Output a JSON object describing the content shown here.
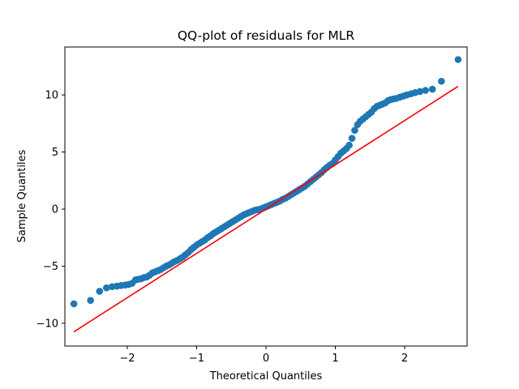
{
  "chart_data": {
    "type": "scatter",
    "title": "QQ-plot of residuals for MLR",
    "xlabel": "Theoretical Quantiles",
    "ylabel": "Sample Quantiles",
    "xlim": [
      -2.9,
      2.9
    ],
    "ylim": [
      -12.0,
      14.2
    ],
    "xticks": [
      -2,
      -1,
      0,
      1,
      2
    ],
    "yticks": [
      -10,
      -5,
      0,
      5,
      10
    ],
    "grid": false,
    "legend": "none",
    "colors": {
      "points": "#1f77b4",
      "reference_line": "#ff0000"
    },
    "series": [
      {
        "kind": "points",
        "x": [
          -2.77,
          -2.53,
          -2.4,
          -2.3,
          -2.22,
          -2.15,
          -2.09,
          -2.03,
          -1.98,
          -1.93,
          -1.88,
          -1.84,
          -1.8,
          -1.76,
          -1.72,
          -1.68,
          -1.64,
          -1.6,
          -1.56,
          -1.52,
          -1.48,
          -1.44,
          -1.4,
          -1.36,
          -1.32,
          -1.28,
          -1.24,
          -1.2,
          -1.16,
          -1.12,
          -1.08,
          -1.04,
          -1.0,
          -0.96,
          -0.92,
          -0.88,
          -0.84,
          -0.8,
          -0.76,
          -0.72,
          -0.68,
          -0.64,
          -0.6,
          -0.56,
          -0.52,
          -0.48,
          -0.44,
          -0.4,
          -0.36,
          -0.32,
          -0.28,
          -0.24,
          -0.2,
          -0.16,
          -0.12,
          -0.08,
          -0.04,
          0.0,
          0.04,
          0.08,
          0.12,
          0.16,
          0.2,
          0.24,
          0.28,
          0.32,
          0.36,
          0.4,
          0.44,
          0.48,
          0.52,
          0.56,
          0.6,
          0.64,
          0.68,
          0.72,
          0.76,
          0.8,
          0.84,
          0.88,
          0.92,
          0.96,
          1.0,
          1.04,
          1.08,
          1.12,
          1.16,
          1.2,
          1.24,
          1.28,
          1.32,
          1.36,
          1.4,
          1.44,
          1.48,
          1.52,
          1.56,
          1.6,
          1.64,
          1.68,
          1.72,
          1.76,
          1.8,
          1.84,
          1.88,
          1.93,
          1.98,
          2.03,
          2.09,
          2.15,
          2.22,
          2.3,
          2.4,
          2.53,
          2.77
        ],
        "y": [
          -8.3,
          -8.0,
          -7.2,
          -6.9,
          -6.8,
          -6.75,
          -6.7,
          -6.65,
          -6.6,
          -6.5,
          -6.2,
          -6.15,
          -6.1,
          -6.0,
          -5.95,
          -5.8,
          -5.6,
          -5.5,
          -5.4,
          -5.3,
          -5.15,
          -5.0,
          -4.9,
          -4.75,
          -4.6,
          -4.5,
          -4.35,
          -4.2,
          -4.0,
          -3.8,
          -3.55,
          -3.35,
          -3.15,
          -3.0,
          -2.85,
          -2.7,
          -2.5,
          -2.35,
          -2.15,
          -2.0,
          -1.85,
          -1.7,
          -1.55,
          -1.4,
          -1.25,
          -1.1,
          -0.95,
          -0.8,
          -0.65,
          -0.5,
          -0.4,
          -0.3,
          -0.2,
          -0.1,
          -0.05,
          0.0,
          0.1,
          0.2,
          0.3,
          0.4,
          0.5,
          0.6,
          0.7,
          0.85,
          0.95,
          1.1,
          1.25,
          1.4,
          1.55,
          1.7,
          1.85,
          2.0,
          2.2,
          2.4,
          2.6,
          2.8,
          3.0,
          3.2,
          3.45,
          3.65,
          3.85,
          4.0,
          4.3,
          4.6,
          4.9,
          5.1,
          5.3,
          5.6,
          6.2,
          6.9,
          7.4,
          7.7,
          7.9,
          8.1,
          8.3,
          8.5,
          8.8,
          9.0,
          9.1,
          9.2,
          9.3,
          9.5,
          9.6,
          9.65,
          9.7,
          9.8,
          9.9,
          10.0,
          10.1,
          10.2,
          10.3,
          10.4,
          10.5,
          11.2,
          13.1
        ]
      },
      {
        "kind": "line",
        "x": [
          -2.77,
          2.77
        ],
        "y": [
          -10.75,
          10.75
        ]
      }
    ]
  }
}
